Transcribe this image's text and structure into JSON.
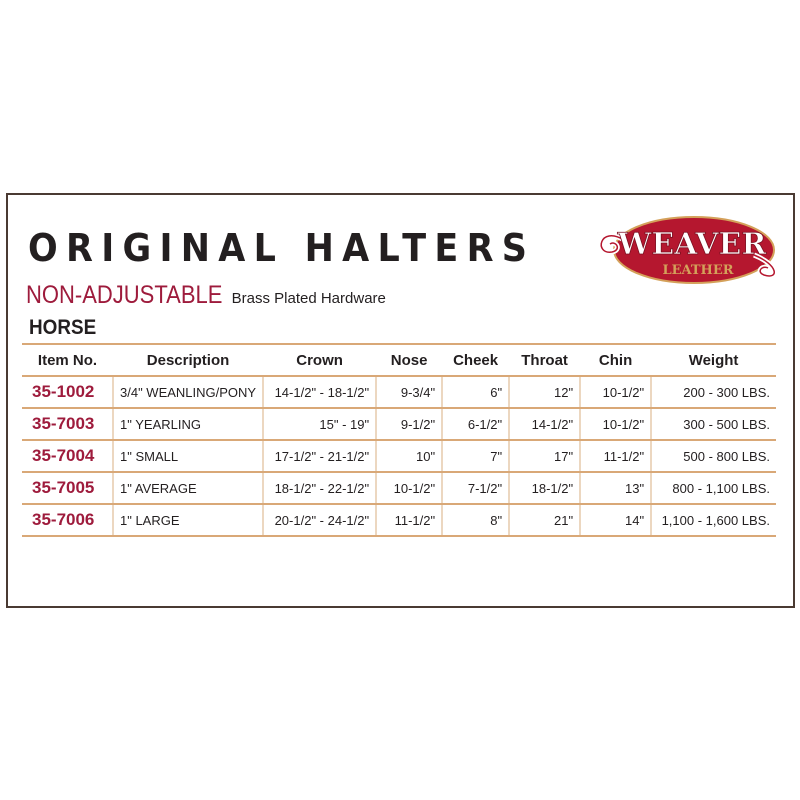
{
  "title": "ORIGINAL HALTERS",
  "subtitle": "NON-ADJUSTABLE",
  "subtitle_note": "Brass Plated Hardware",
  "section": "HORSE",
  "logo": {
    "brand": "WEAVER",
    "sub": "LEATHER",
    "colors": {
      "red": "#b5172f",
      "gold": "#d4a15a"
    }
  },
  "colors": {
    "accent": "#9e1b3c",
    "rule": "#d9a877"
  },
  "table": {
    "headers": [
      "Item No.",
      "Description",
      "Crown",
      "Nose",
      "Cheek",
      "Throat",
      "Chin",
      "Weight"
    ],
    "rows": [
      [
        "35-1002",
        "3/4\" WEANLING/PONY",
        "14-1/2\" - 18-1/2\"",
        "9-3/4\"",
        "6\"",
        "12\"",
        "10-1/2\"",
        "200 - 300 LBS."
      ],
      [
        "35-7003",
        "1\" YEARLING",
        "15\" - 19\"",
        "9-1/2\"",
        "6-1/2\"",
        "14-1/2\"",
        "10-1/2\"",
        "300 - 500 LBS."
      ],
      [
        "35-7004",
        "1\" SMALL",
        "17-1/2\" - 21-1/2\"",
        "10\"",
        "7\"",
        "17\"",
        "11-1/2\"",
        "500 - 800 LBS."
      ],
      [
        "35-7005",
        "1\" AVERAGE",
        "18-1/2\" - 22-1/2\"",
        "10-1/2\"",
        "7-1/2\"",
        "18-1/2\"",
        "13\"",
        "800 - 1,100 LBS."
      ],
      [
        "35-7006",
        "1\" LARGE",
        "20-1/2\" - 24-1/2\"",
        "11-1/2\"",
        "8\"",
        "21\"",
        "14\"",
        "1,100 - 1,600 LBS."
      ]
    ]
  }
}
